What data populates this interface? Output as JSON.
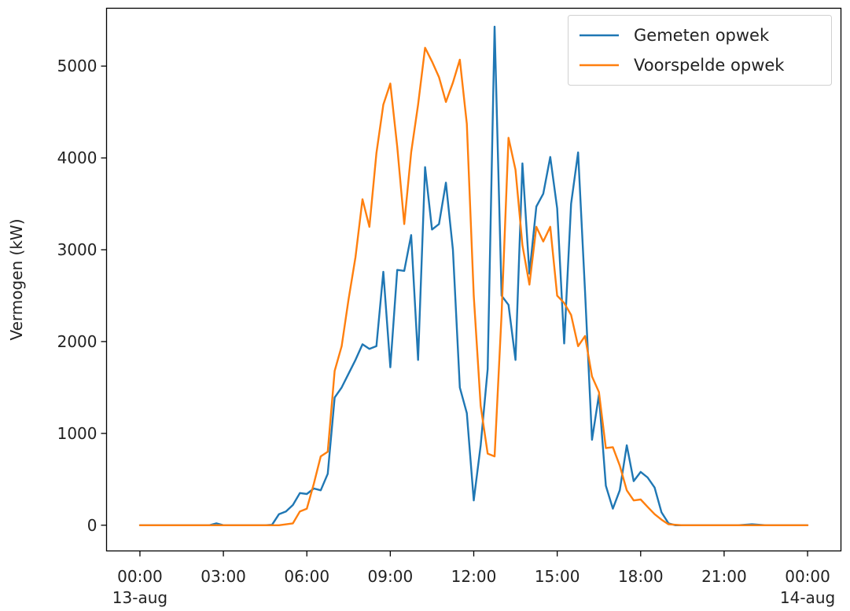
{
  "chart_data": {
    "type": "line",
    "title": "",
    "xlabel": "",
    "ylabel": "Vermogen (kW)",
    "x_tick_labels": [
      {
        "time": "00:00",
        "date": "13-aug",
        "hours": 0
      },
      {
        "time": "03:00",
        "date": "",
        "hours": 3
      },
      {
        "time": "06:00",
        "date": "",
        "hours": 6
      },
      {
        "time": "09:00",
        "date": "",
        "hours": 9
      },
      {
        "time": "12:00",
        "date": "",
        "hours": 12
      },
      {
        "time": "15:00",
        "date": "",
        "hours": 15
      },
      {
        "time": "18:00",
        "date": "",
        "hours": 18
      },
      {
        "time": "21:00",
        "date": "",
        "hours": 21
      },
      {
        "time": "00:00",
        "date": "14-aug",
        "hours": 24
      }
    ],
    "y_ticks": [
      0,
      1000,
      2000,
      3000,
      4000,
      5000
    ],
    "xlim_hours": [
      -1.2,
      25.2
    ],
    "ylim": [
      -280,
      5630
    ],
    "grid": false,
    "legend_position": "top-right",
    "series": [
      {
        "name": "Gemeten opwek",
        "color": "#1f77b4",
        "points": [
          [
            0,
            0
          ],
          [
            1,
            0
          ],
          [
            2,
            0
          ],
          [
            2.5,
            0
          ],
          [
            2.75,
            20
          ],
          [
            3,
            0
          ],
          [
            4,
            0
          ],
          [
            4.5,
            0
          ],
          [
            4.75,
            5
          ],
          [
            5,
            120
          ],
          [
            5.25,
            150
          ],
          [
            5.5,
            220
          ],
          [
            5.75,
            350
          ],
          [
            6,
            340
          ],
          [
            6.25,
            400
          ],
          [
            6.5,
            380
          ],
          [
            6.75,
            560
          ],
          [
            7,
            1390
          ],
          [
            7.25,
            1500
          ],
          [
            7.5,
            1650
          ],
          [
            7.75,
            1800
          ],
          [
            8,
            1970
          ],
          [
            8.25,
            1920
          ],
          [
            8.5,
            1950
          ],
          [
            8.75,
            2760
          ],
          [
            9,
            1720
          ],
          [
            9.25,
            2780
          ],
          [
            9.5,
            2770
          ],
          [
            9.75,
            3160
          ],
          [
            10,
            1800
          ],
          [
            10.25,
            3900
          ],
          [
            10.5,
            3220
          ],
          [
            10.75,
            3280
          ],
          [
            11,
            3730
          ],
          [
            11.25,
            3000
          ],
          [
            11.5,
            1500
          ],
          [
            11.75,
            1220
          ],
          [
            12,
            270
          ],
          [
            12.25,
            870
          ],
          [
            12.5,
            1700
          ],
          [
            12.75,
            5430
          ],
          [
            13,
            2500
          ],
          [
            13.25,
            2400
          ],
          [
            13.5,
            1800
          ],
          [
            13.75,
            3940
          ],
          [
            14,
            2740
          ],
          [
            14.25,
            3470
          ],
          [
            14.5,
            3610
          ],
          [
            14.75,
            4010
          ],
          [
            15,
            3450
          ],
          [
            15.25,
            1980
          ],
          [
            15.5,
            3500
          ],
          [
            15.75,
            4060
          ],
          [
            16,
            2550
          ],
          [
            16.25,
            930
          ],
          [
            16.5,
            1420
          ],
          [
            16.75,
            430
          ],
          [
            17,
            180
          ],
          [
            17.25,
            380
          ],
          [
            17.5,
            870
          ],
          [
            17.75,
            480
          ],
          [
            18,
            580
          ],
          [
            18.25,
            520
          ],
          [
            18.5,
            410
          ],
          [
            18.75,
            140
          ],
          [
            19,
            20
          ],
          [
            19.25,
            0
          ],
          [
            20,
            0
          ],
          [
            21,
            0
          ],
          [
            21.5,
            0
          ],
          [
            22,
            10
          ],
          [
            22.5,
            0
          ],
          [
            24,
            0
          ]
        ]
      },
      {
        "name": "Voorspelde opwek",
        "color": "#ff7f0e",
        "points": [
          [
            0,
            0
          ],
          [
            1,
            0
          ],
          [
            2,
            0
          ],
          [
            3,
            0
          ],
          [
            4,
            0
          ],
          [
            5,
            0
          ],
          [
            5.5,
            20
          ],
          [
            5.75,
            150
          ],
          [
            6,
            180
          ],
          [
            6.25,
            450
          ],
          [
            6.5,
            750
          ],
          [
            6.75,
            800
          ],
          [
            7,
            1680
          ],
          [
            7.25,
            1950
          ],
          [
            7.5,
            2460
          ],
          [
            7.75,
            2920
          ],
          [
            8,
            3550
          ],
          [
            8.25,
            3250
          ],
          [
            8.5,
            4050
          ],
          [
            8.75,
            4580
          ],
          [
            9,
            4810
          ],
          [
            9.25,
            4120
          ],
          [
            9.5,
            3280
          ],
          [
            9.75,
            4060
          ],
          [
            10,
            4580
          ],
          [
            10.25,
            5200
          ],
          [
            10.5,
            5050
          ],
          [
            10.75,
            4880
          ],
          [
            11,
            4610
          ],
          [
            11.25,
            4820
          ],
          [
            11.5,
            5070
          ],
          [
            11.75,
            4370
          ],
          [
            12,
            2500
          ],
          [
            12.25,
            1300
          ],
          [
            12.5,
            780
          ],
          [
            12.75,
            750
          ],
          [
            13,
            2300
          ],
          [
            13.25,
            4220
          ],
          [
            13.5,
            3870
          ],
          [
            13.75,
            3050
          ],
          [
            14,
            2620
          ],
          [
            14.25,
            3250
          ],
          [
            14.5,
            3090
          ],
          [
            14.75,
            3250
          ],
          [
            15,
            2500
          ],
          [
            15.25,
            2420
          ],
          [
            15.5,
            2290
          ],
          [
            15.75,
            1950
          ],
          [
            16,
            2060
          ],
          [
            16.25,
            1620
          ],
          [
            16.5,
            1450
          ],
          [
            16.75,
            840
          ],
          [
            17,
            850
          ],
          [
            17.25,
            650
          ],
          [
            17.5,
            380
          ],
          [
            17.75,
            270
          ],
          [
            18,
            280
          ],
          [
            18.25,
            200
          ],
          [
            18.5,
            120
          ],
          [
            18.75,
            60
          ],
          [
            19,
            10
          ],
          [
            19.5,
            0
          ],
          [
            20,
            0
          ],
          [
            21,
            0
          ],
          [
            22,
            0
          ],
          [
            23,
            0
          ],
          [
            24,
            0
          ]
        ]
      }
    ]
  }
}
